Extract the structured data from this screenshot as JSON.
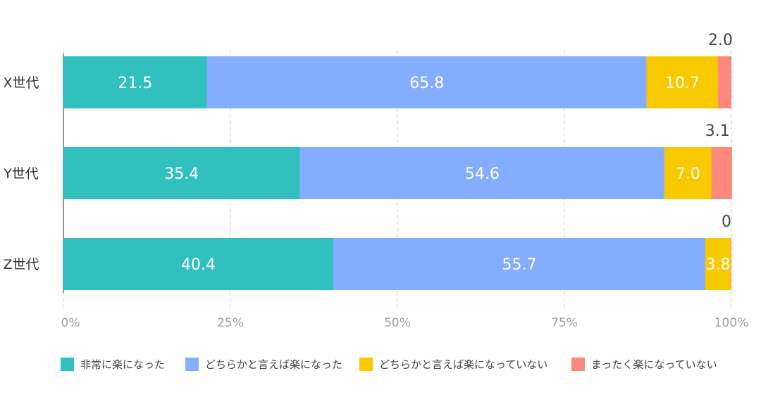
{
  "chart_data": {
    "type": "bar",
    "orientation": "horizontal",
    "stacked": true,
    "percent": true,
    "categories": [
      "X世代",
      "Y世代",
      "Z世代"
    ],
    "series": [
      {
        "name": "非常に楽になった",
        "color": "#31c0bd",
        "values": [
          21.5,
          35.4,
          40.4
        ]
      },
      {
        "name": "どちらかと言えば楽になった",
        "color": "#84acff",
        "values": [
          65.8,
          54.6,
          55.7
        ]
      },
      {
        "name": "どちらかと言えば楽になっていない",
        "color": "#f9c900",
        "values": [
          10.7,
          7.0,
          3.8
        ]
      },
      {
        "name": "まったく楽になっていない",
        "color": "#fc897c",
        "values": [
          2.0,
          3.1,
          0
        ]
      }
    ],
    "data_labels": [
      [
        "21.5",
        "65.8",
        "10.7",
        "2.0"
      ],
      [
        "35.4",
        "54.6",
        "7.0",
        "3.1"
      ],
      [
        "40.4",
        "55.7",
        "3.8",
        "0"
      ]
    ],
    "xticks": [
      "0%",
      "25%",
      "50%",
      "75%",
      "100%"
    ],
    "xlim": [
      0,
      100
    ],
    "grid": true,
    "legend": "bottom"
  }
}
